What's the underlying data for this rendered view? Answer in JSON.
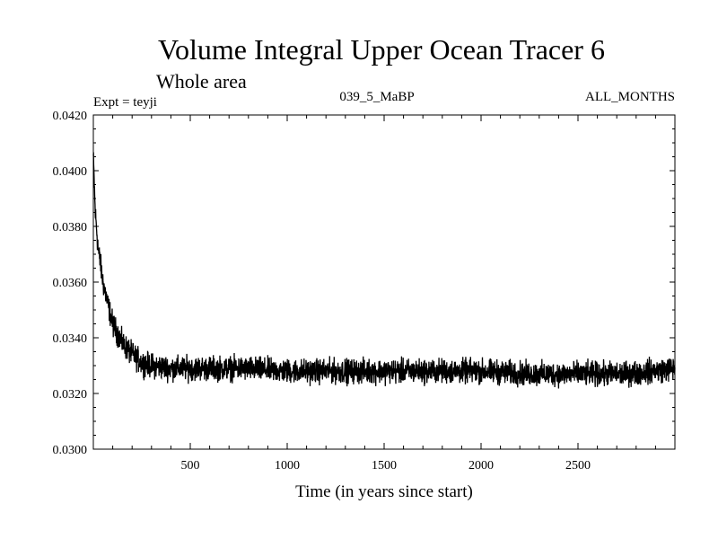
{
  "chart_data": {
    "type": "line",
    "title": "Volume Integral Upper Ocean Tracer 6",
    "subtitle": "Whole area",
    "meta_left": "Expt = teyji",
    "meta_center": "039_5_MaBP",
    "meta_right": "ALL_MONTHS",
    "xlabel": "Time (in years since start)",
    "ylabel": "",
    "xlim": [
      0,
      3000
    ],
    "ylim": [
      0.03,
      0.042
    ],
    "x_ticks": [
      500,
      1000,
      1500,
      2000,
      2500
    ],
    "x_tick_labels": [
      "500",
      "1000",
      "1500",
      "2000",
      "2500"
    ],
    "y_ticks": [
      0.03,
      0.032,
      0.034,
      0.036,
      0.038,
      0.04,
      0.042
    ],
    "y_tick_labels": [
      "0.0300",
      "0.0320",
      "0.0340",
      "0.0360",
      "0.0380",
      "0.0400",
      "0.0420"
    ],
    "series": [
      {
        "name": "teyji",
        "x": [
          0,
          10,
          25,
          50,
          75,
          100,
          150,
          200,
          250,
          300,
          400,
          500,
          750,
          1000,
          1250,
          1500,
          1750,
          2000,
          2250,
          2500,
          2750,
          3000
        ],
        "y": [
          0.0405,
          0.0385,
          0.0372,
          0.036,
          0.0352,
          0.0345,
          0.0338,
          0.0334,
          0.0331,
          0.033,
          0.0329,
          0.0329,
          0.0329,
          0.0328,
          0.0328,
          0.0328,
          0.0328,
          0.0328,
          0.0327,
          0.0327,
          0.0327,
          0.0329
        ],
        "noise_amplitude": 0.0004
      }
    ]
  }
}
